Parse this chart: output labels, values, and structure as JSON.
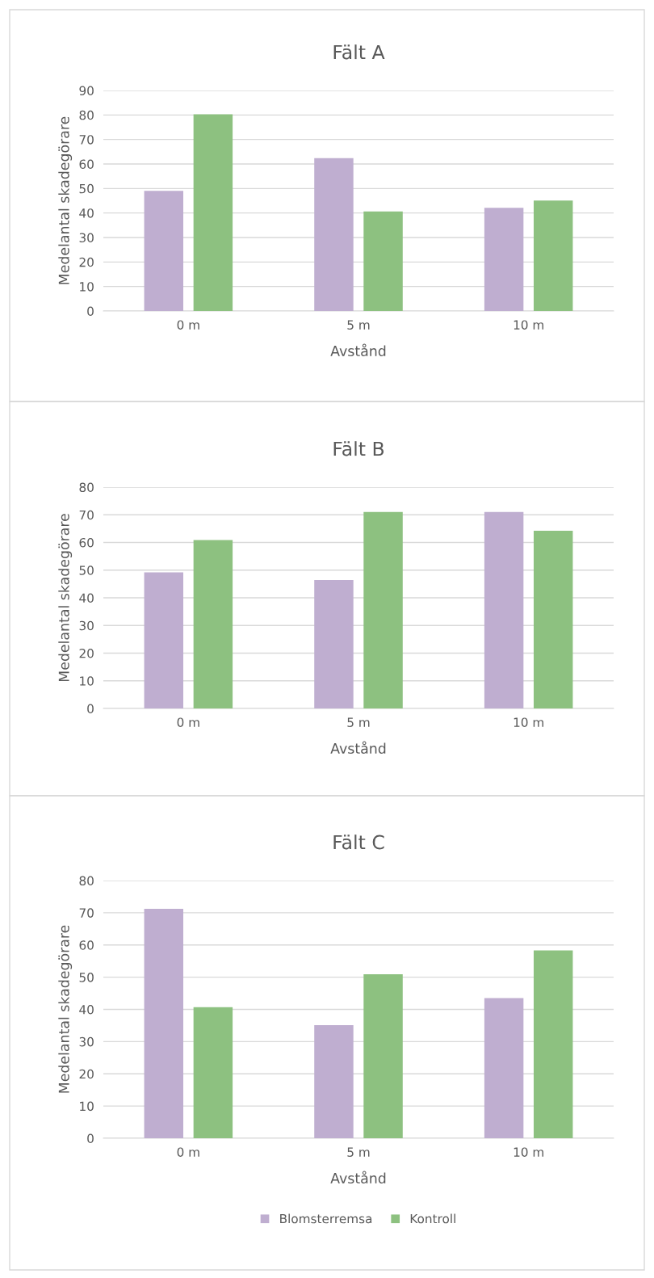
{
  "chart_data": [
    {
      "type": "bar",
      "title": "Fält A",
      "xlabel": "Avstånd",
      "ylabel": "Medelantal skadegörare",
      "categories": [
        "0 m",
        "5 m",
        "10 m"
      ],
      "series": [
        {
          "color": "#bfaed0",
          "values": [
            49,
            62.4,
            42.1
          ]
        },
        {
          "color": "#8dc180",
          "values": [
            80.3,
            40.6,
            45.1
          ]
        }
      ],
      "ylim": [
        0,
        90
      ],
      "yticks": [
        0,
        10,
        20,
        30,
        40,
        50,
        60,
        70,
        80,
        90
      ],
      "grid": "y",
      "legend": false
    },
    {
      "type": "bar",
      "title": "Fält B",
      "xlabel": "Avstånd",
      "ylabel": "Medelantal skadegörare",
      "categories": [
        "0 m",
        "5 m",
        "10 m"
      ],
      "series": [
        {
          "color": "#bfaed0",
          "values": [
            49.2,
            46.4,
            71
          ]
        },
        {
          "color": "#8dc180",
          "values": [
            60.9,
            71,
            64.2
          ]
        }
      ],
      "ylim": [
        0,
        80
      ],
      "yticks": [
        0,
        10,
        20,
        30,
        40,
        50,
        60,
        70,
        80
      ],
      "grid": "y",
      "legend": false
    },
    {
      "type": "bar",
      "title": "Fält C",
      "xlabel": "Avstånd",
      "ylabel": "Medelantal skadegörare",
      "categories": [
        "0 m",
        "5 m",
        "10 m"
      ],
      "series": [
        {
          "name": "Blomsterremsa",
          "color": "#bfaed0",
          "values": [
            71.2,
            35.1,
            43.5
          ]
        },
        {
          "name": "Kontroll",
          "color": "#8dc180",
          "values": [
            40.7,
            50.9,
            58.3
          ]
        }
      ],
      "ylim": [
        0,
        80
      ],
      "yticks": [
        0,
        10,
        20,
        30,
        40,
        50,
        60,
        70,
        80
      ],
      "grid": "y",
      "legend": "bottom"
    }
  ]
}
